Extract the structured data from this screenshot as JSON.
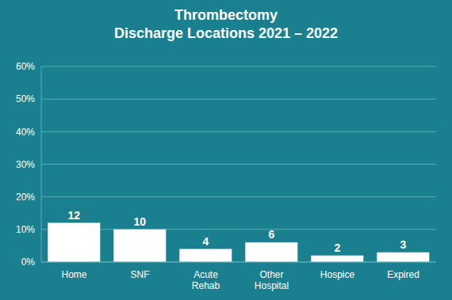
{
  "chart_data": {
    "type": "bar",
    "title": "Thrombectomy\nDischarge Locations 2021 – 2022",
    "categories": [
      "Home",
      "SNF",
      "Acute\nRehab",
      "Other\nHospital",
      "Hospice",
      "Expired"
    ],
    "values": [
      12,
      10,
      4,
      6,
      2,
      3
    ],
    "color": "#ffffff",
    "ylim": [
      0,
      60
    ],
    "yticks": [
      {
        "value": 0,
        "label": "0%"
      },
      {
        "value": 10,
        "label": "10%"
      },
      {
        "value": 20,
        "label": "20%"
      },
      {
        "value": 30,
        "label": "30%"
      },
      {
        "value": 40,
        "label": "40%"
      },
      {
        "value": 50,
        "label": "50%"
      },
      {
        "value": 60,
        "label": "60%"
      }
    ],
    "grid": true,
    "data_labels": true
  }
}
